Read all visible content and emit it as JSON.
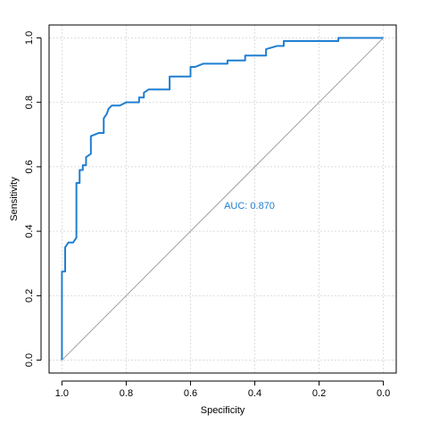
{
  "chart_data": {
    "type": "line",
    "title": "",
    "xlabel": "Specificity",
    "ylabel": "Sensitivity",
    "xlim": [
      1.04,
      -0.04
    ],
    "ylim": [
      -0.04,
      1.04
    ],
    "x_reversed": true,
    "x_ticks": [
      1.0,
      0.8,
      0.6,
      0.4,
      0.2,
      0.0
    ],
    "x_tick_labels": [
      "1.0",
      "0.8",
      "0.6",
      "0.4",
      "0.2",
      "0.0"
    ],
    "y_ticks": [
      0.0,
      0.2,
      0.4,
      0.6,
      0.8,
      1.0
    ],
    "y_tick_labels": [
      "0.0",
      "0.2",
      "0.4",
      "0.6",
      "0.8",
      "1.0"
    ],
    "grid": true,
    "grid_style": "dotted light gray",
    "reference_line": {
      "from": [
        1.0,
        0.0
      ],
      "to": [
        0.0,
        1.0
      ],
      "color": "#a0a0a0"
    },
    "annotation": {
      "text": "AUC: 0.870",
      "x": 0.5,
      "y": 0.48,
      "color": "#1f7fd1"
    },
    "series": [
      {
        "color": "#1f7fd1",
        "points": [
          [
            1.0,
            0.0
          ],
          [
            1.0,
            0.275
          ],
          [
            0.99,
            0.275
          ],
          [
            0.99,
            0.35
          ],
          [
            0.98,
            0.365
          ],
          [
            0.965,
            0.365
          ],
          [
            0.955,
            0.38
          ],
          [
            0.955,
            0.55
          ],
          [
            0.945,
            0.55
          ],
          [
            0.945,
            0.59
          ],
          [
            0.935,
            0.59
          ],
          [
            0.935,
            0.605
          ],
          [
            0.925,
            0.605
          ],
          [
            0.925,
            0.63
          ],
          [
            0.91,
            0.64
          ],
          [
            0.91,
            0.695
          ],
          [
            0.885,
            0.705
          ],
          [
            0.87,
            0.705
          ],
          [
            0.87,
            0.75
          ],
          [
            0.86,
            0.765
          ],
          [
            0.855,
            0.78
          ],
          [
            0.845,
            0.79
          ],
          [
            0.82,
            0.79
          ],
          [
            0.8,
            0.8
          ],
          [
            0.76,
            0.8
          ],
          [
            0.76,
            0.815
          ],
          [
            0.745,
            0.815
          ],
          [
            0.745,
            0.83
          ],
          [
            0.73,
            0.84
          ],
          [
            0.665,
            0.84
          ],
          [
            0.665,
            0.88
          ],
          [
            0.6,
            0.88
          ],
          [
            0.6,
            0.91
          ],
          [
            0.585,
            0.91
          ],
          [
            0.56,
            0.92
          ],
          [
            0.485,
            0.92
          ],
          [
            0.485,
            0.93
          ],
          [
            0.43,
            0.93
          ],
          [
            0.43,
            0.945
          ],
          [
            0.365,
            0.945
          ],
          [
            0.365,
            0.965
          ],
          [
            0.33,
            0.975
          ],
          [
            0.31,
            0.975
          ],
          [
            0.31,
            0.99
          ],
          [
            0.14,
            0.99
          ],
          [
            0.14,
            1.0
          ],
          [
            0.0,
            1.0
          ]
        ]
      }
    ]
  }
}
